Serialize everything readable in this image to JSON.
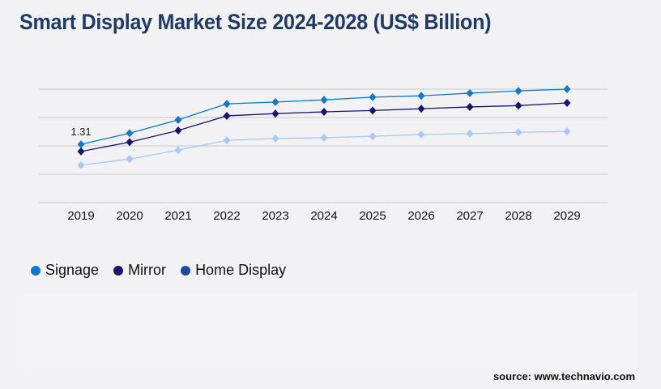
{
  "title": "Smart Display Market Size 2024-2028 (US$ Billion)",
  "source": "source: www.technavio.com",
  "chart_data": {
    "type": "line",
    "title": "Smart Display Market Size 2024-2028 (US$ Billion)",
    "categories": [
      "2019",
      "2020",
      "2021",
      "2022",
      "2023",
      "2024",
      "2025",
      "2026",
      "2027",
      "2028",
      "2029"
    ],
    "ylim": [
      0,
      2.55
    ],
    "grid": true,
    "legend": "bottom-left",
    "annotations": [
      {
        "series": "Signage",
        "category": "2019",
        "label": "1.31"
      }
    ],
    "series": [
      {
        "name": "Signage",
        "color": "#0a7ad1",
        "legend_color": "#0a7ad1",
        "values": [
          1.31,
          1.56,
          1.86,
          2.22,
          2.26,
          2.31,
          2.37,
          2.4,
          2.46,
          2.51,
          2.55
        ]
      },
      {
        "name": "Mirror",
        "color": "#1a1470",
        "legend_color": "#1a1470",
        "values": [
          1.15,
          1.36,
          1.62,
          1.95,
          2.0,
          2.04,
          2.07,
          2.11,
          2.15,
          2.18,
          2.24
        ]
      },
      {
        "name": "Home Display",
        "color": "#a9c8fa",
        "legend_color": "#1b49a8",
        "values": [
          0.84,
          0.98,
          1.18,
          1.4,
          1.44,
          1.46,
          1.49,
          1.53,
          1.55,
          1.58,
          1.6
        ]
      }
    ]
  }
}
